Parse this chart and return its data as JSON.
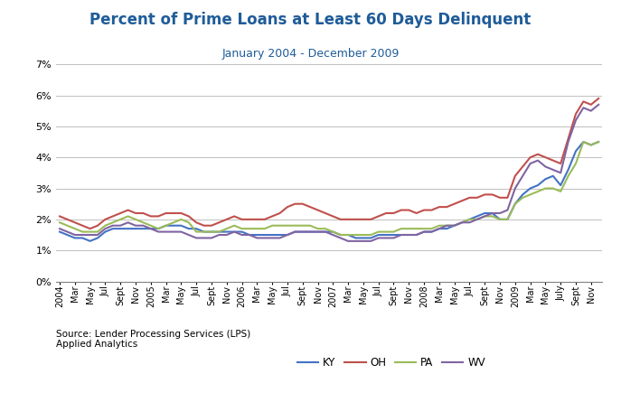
{
  "title": "Percent of Prime Loans at Least 60 Days Delinquent",
  "subtitle": "January 2004 - December 2009",
  "source": "Source: Lender Processing Services (LPS)\nApplied Analytics",
  "title_color": "#1F5C99",
  "line_colors": {
    "KY": "#4472C4",
    "OH": "#C0504D",
    "PA": "#9BBB59",
    "WV": "#8064A2"
  },
  "ylim": [
    0,
    0.07
  ],
  "yticks": [
    0,
    0.01,
    0.02,
    0.03,
    0.04,
    0.05,
    0.06,
    0.07
  ],
  "KY": [
    0.016,
    0.015,
    0.014,
    0.014,
    0.013,
    0.014,
    0.016,
    0.017,
    0.017,
    0.017,
    0.017,
    0.017,
    0.017,
    0.017,
    0.018,
    0.018,
    0.018,
    0.017,
    0.017,
    0.016,
    0.016,
    0.016,
    0.016,
    0.016,
    0.016,
    0.015,
    0.015,
    0.015,
    0.015,
    0.015,
    0.015,
    0.016,
    0.016,
    0.016,
    0.016,
    0.016,
    0.016,
    0.015,
    0.015,
    0.014,
    0.014,
    0.014,
    0.015,
    0.015,
    0.015,
    0.015,
    0.015,
    0.015,
    0.016,
    0.016,
    0.017,
    0.017,
    0.018,
    0.019,
    0.02,
    0.021,
    0.022,
    0.022,
    0.02,
    0.02,
    0.025,
    0.028,
    0.03,
    0.031,
    0.033,
    0.034,
    0.031,
    0.036,
    0.042,
    0.045,
    0.044,
    0.045
  ],
  "OH": [
    0.021,
    0.02,
    0.019,
    0.018,
    0.017,
    0.018,
    0.02,
    0.021,
    0.022,
    0.023,
    0.022,
    0.022,
    0.021,
    0.021,
    0.022,
    0.022,
    0.022,
    0.021,
    0.019,
    0.018,
    0.018,
    0.019,
    0.02,
    0.021,
    0.02,
    0.02,
    0.02,
    0.02,
    0.021,
    0.022,
    0.024,
    0.025,
    0.025,
    0.024,
    0.023,
    0.022,
    0.021,
    0.02,
    0.02,
    0.02,
    0.02,
    0.02,
    0.021,
    0.022,
    0.022,
    0.023,
    0.023,
    0.022,
    0.023,
    0.023,
    0.024,
    0.024,
    0.025,
    0.026,
    0.027,
    0.027,
    0.028,
    0.028,
    0.027,
    0.027,
    0.034,
    0.037,
    0.04,
    0.041,
    0.04,
    0.039,
    0.038,
    0.046,
    0.054,
    0.058,
    0.057,
    0.059
  ],
  "PA": [
    0.019,
    0.018,
    0.017,
    0.016,
    0.016,
    0.016,
    0.018,
    0.019,
    0.02,
    0.021,
    0.02,
    0.019,
    0.018,
    0.017,
    0.018,
    0.019,
    0.02,
    0.019,
    0.016,
    0.016,
    0.016,
    0.016,
    0.017,
    0.018,
    0.017,
    0.017,
    0.017,
    0.017,
    0.018,
    0.018,
    0.018,
    0.018,
    0.018,
    0.018,
    0.017,
    0.017,
    0.016,
    0.015,
    0.015,
    0.015,
    0.015,
    0.015,
    0.016,
    0.016,
    0.016,
    0.017,
    0.017,
    0.017,
    0.017,
    0.017,
    0.018,
    0.018,
    0.018,
    0.019,
    0.02,
    0.02,
    0.021,
    0.021,
    0.02,
    0.02,
    0.025,
    0.027,
    0.028,
    0.029,
    0.03,
    0.03,
    0.029,
    0.034,
    0.038,
    0.045,
    0.044,
    0.045
  ],
  "WV": [
    0.017,
    0.016,
    0.015,
    0.015,
    0.015,
    0.015,
    0.017,
    0.018,
    0.018,
    0.019,
    0.018,
    0.018,
    0.017,
    0.016,
    0.016,
    0.016,
    0.016,
    0.015,
    0.014,
    0.014,
    0.014,
    0.015,
    0.015,
    0.016,
    0.015,
    0.015,
    0.014,
    0.014,
    0.014,
    0.014,
    0.015,
    0.016,
    0.016,
    0.016,
    0.016,
    0.016,
    0.015,
    0.014,
    0.013,
    0.013,
    0.013,
    0.013,
    0.014,
    0.014,
    0.014,
    0.015,
    0.015,
    0.015,
    0.016,
    0.016,
    0.017,
    0.018,
    0.018,
    0.019,
    0.019,
    0.02,
    0.021,
    0.022,
    0.022,
    0.023,
    0.03,
    0.034,
    0.038,
    0.039,
    0.037,
    0.036,
    0.035,
    0.045,
    0.052,
    0.056,
    0.055,
    0.057
  ],
  "x_tick_labels": [
    "2004",
    "Mar",
    "May",
    "Jul",
    "Sept",
    "Nov",
    "2005",
    "Mar",
    "May",
    "Jul",
    "Sept",
    "Nov",
    "2006",
    "Mar",
    "May",
    "Jul",
    "Sept",
    "Nov",
    "2007",
    "Mar",
    "May",
    "Jul",
    "Sept",
    "Nov",
    "2008",
    "Mar",
    "May",
    "Jul",
    "Sept",
    "Nov",
    "2009",
    "Mar",
    "May",
    "July",
    "Sept",
    "Nov"
  ],
  "x_tick_positions": [
    0,
    2,
    4,
    6,
    8,
    10,
    12,
    14,
    16,
    18,
    20,
    22,
    24,
    26,
    28,
    30,
    32,
    34,
    36,
    38,
    40,
    42,
    44,
    46,
    48,
    50,
    52,
    54,
    56,
    58,
    60,
    62,
    64,
    66,
    68,
    70
  ]
}
